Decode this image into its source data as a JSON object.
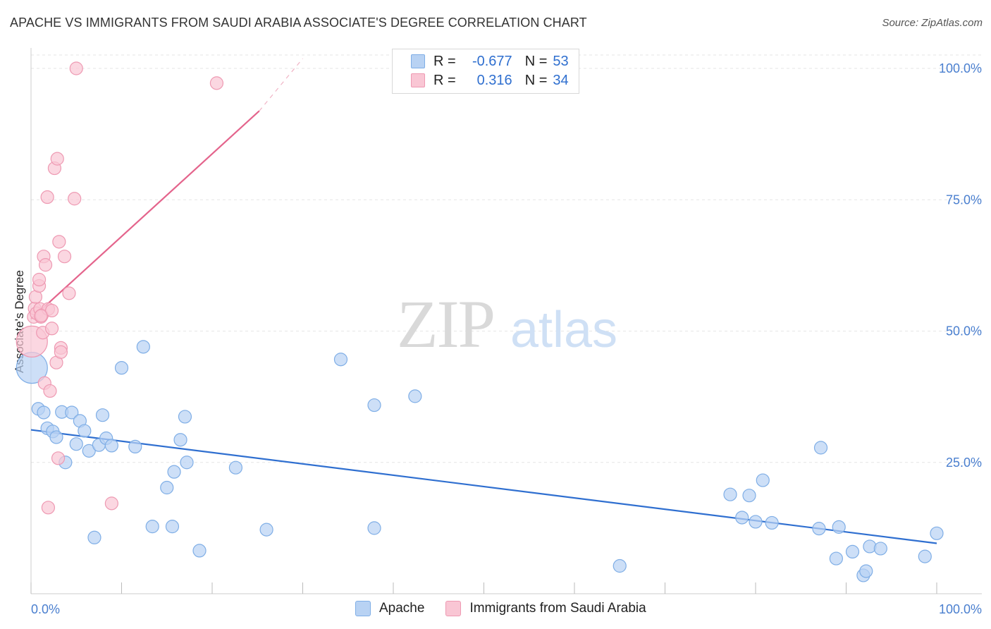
{
  "header": {
    "title": "APACHE VS IMMIGRANTS FROM SAUDI ARABIA ASSOCIATE'S DEGREE CORRELATION CHART",
    "source": "Source: ZipAtlas.com"
  },
  "watermark": {
    "zip": "ZIP",
    "atlas": "atlas"
  },
  "colors": {
    "apache_fill": "#b8d2f3",
    "apache_stroke": "#7faee6",
    "apache_line": "#2f6fd0",
    "saudi_fill": "#f9c6d4",
    "saudi_stroke": "#ee99b2",
    "saudi_line": "#e4648c",
    "tick_text": "#4a7fcf",
    "grid": "#e6e6e6"
  },
  "legend": {
    "rows": [
      {
        "r_label": "R =",
        "r_value": "-0.677",
        "n_label": "N =",
        "n_value": "53"
      },
      {
        "r_label": "R =",
        "r_value": "0.316",
        "n_label": "N =",
        "n_value": "34"
      }
    ]
  },
  "bottom_legend": {
    "apache": "Apache",
    "saudi": "Immigrants from Saudi Arabia"
  },
  "chart_data": {
    "type": "scatter",
    "title": "APACHE VS IMMIGRANTS FROM SAUDI ARABIA ASSOCIATE'S DEGREE CORRELATION CHART",
    "xlabel": "",
    "ylabel": "Associate's Degree",
    "xlim": [
      0,
      100
    ],
    "ylim": [
      0,
      100
    ],
    "y_ticks": [
      {
        "value": 25,
        "label": "25.0%"
      },
      {
        "value": 50,
        "label": "50.0%"
      },
      {
        "value": 75,
        "label": "75.0%"
      },
      {
        "value": 100,
        "label": "100.0%"
      }
    ],
    "x_tick_labels": [
      {
        "value": 0,
        "label": "0.0%"
      },
      {
        "value": 100,
        "label": "100.0%"
      }
    ],
    "grid": true,
    "legend_position": "top-center",
    "series": [
      {
        "name": "Apache",
        "color": "#b8d2f3",
        "trend": {
          "x0": 0,
          "y0": 31.2,
          "x1": 100,
          "y1": 9.6
        },
        "points": [
          {
            "x": 0.1,
            "y": 43.0,
            "big": true
          },
          {
            "x": 0.8,
            "y": 35.2
          },
          {
            "x": 1.4,
            "y": 34.5
          },
          {
            "x": 1.8,
            "y": 31.5
          },
          {
            "x": 2.4,
            "y": 30.9
          },
          {
            "x": 2.8,
            "y": 29.8
          },
          {
            "x": 3.8,
            "y": 25.0
          },
          {
            "x": 3.4,
            "y": 34.6
          },
          {
            "x": 4.5,
            "y": 34.5
          },
          {
            "x": 5.0,
            "y": 28.5
          },
          {
            "x": 5.4,
            "y": 32.9
          },
          {
            "x": 5.9,
            "y": 31.0
          },
          {
            "x": 6.4,
            "y": 27.2
          },
          {
            "x": 7.0,
            "y": 10.7
          },
          {
            "x": 7.5,
            "y": 28.3
          },
          {
            "x": 7.9,
            "y": 34.0
          },
          {
            "x": 8.3,
            "y": 29.6
          },
          {
            "x": 8.9,
            "y": 28.2
          },
          {
            "x": 10.0,
            "y": 43.0
          },
          {
            "x": 11.5,
            "y": 28.0
          },
          {
            "x": 12.4,
            "y": 47.0
          },
          {
            "x": 13.4,
            "y": 12.8
          },
          {
            "x": 15.0,
            "y": 20.2
          },
          {
            "x": 15.6,
            "y": 12.8
          },
          {
            "x": 15.8,
            "y": 23.2
          },
          {
            "x": 16.5,
            "y": 29.3
          },
          {
            "x": 17.0,
            "y": 33.7
          },
          {
            "x": 17.2,
            "y": 25.0
          },
          {
            "x": 18.6,
            "y": 8.2
          },
          {
            "x": 22.6,
            "y": 24.0
          },
          {
            "x": 26.0,
            "y": 12.2
          },
          {
            "x": 34.2,
            "y": 44.6
          },
          {
            "x": 37.9,
            "y": 35.9
          },
          {
            "x": 37.9,
            "y": 12.5
          },
          {
            "x": 42.4,
            "y": 37.6
          },
          {
            "x": 65.0,
            "y": 5.3
          },
          {
            "x": 77.2,
            "y": 18.9
          },
          {
            "x": 78.5,
            "y": 14.5
          },
          {
            "x": 79.3,
            "y": 18.7
          },
          {
            "x": 80.0,
            "y": 13.7
          },
          {
            "x": 80.8,
            "y": 21.6
          },
          {
            "x": 81.8,
            "y": 13.5
          },
          {
            "x": 87.0,
            "y": 12.4
          },
          {
            "x": 87.2,
            "y": 27.8
          },
          {
            "x": 88.9,
            "y": 6.7
          },
          {
            "x": 89.2,
            "y": 12.7
          },
          {
            "x": 90.7,
            "y": 8.0
          },
          {
            "x": 91.9,
            "y": 3.5
          },
          {
            "x": 92.2,
            "y": 4.3
          },
          {
            "x": 92.6,
            "y": 9.0
          },
          {
            "x": 93.8,
            "y": 8.6
          },
          {
            "x": 98.7,
            "y": 7.1
          },
          {
            "x": 100.0,
            "y": 11.5
          }
        ]
      },
      {
        "name": "Immigrants from Saudi Arabia",
        "color": "#f9c6d4",
        "trend": {
          "x0": 0,
          "y0": 52.3,
          "x1": 25.2,
          "y1": 91.9,
          "dash_x1": 30.0,
          "dash_y1": 100
        },
        "points": [
          {
            "x": 0.1,
            "y": 48.0,
            "big": true
          },
          {
            "x": 0.3,
            "y": 52.7
          },
          {
            "x": 0.4,
            "y": 54.3
          },
          {
            "x": 0.5,
            "y": 56.5
          },
          {
            "x": 0.6,
            "y": 53.4
          },
          {
            "x": 0.9,
            "y": 58.6
          },
          {
            "x": 0.9,
            "y": 59.8
          },
          {
            "x": 1.0,
            "y": 54.2
          },
          {
            "x": 1.1,
            "y": 52.7
          },
          {
            "x": 1.2,
            "y": 53.0
          },
          {
            "x": 1.3,
            "y": 49.7
          },
          {
            "x": 1.4,
            "y": 64.2
          },
          {
            "x": 1.5,
            "y": 40.1
          },
          {
            "x": 1.6,
            "y": 62.6
          },
          {
            "x": 1.8,
            "y": 75.5
          },
          {
            "x": 1.9,
            "y": 54.2
          },
          {
            "x": 1.9,
            "y": 16.4
          },
          {
            "x": 2.1,
            "y": 38.6
          },
          {
            "x": 2.3,
            "y": 50.5
          },
          {
            "x": 2.3,
            "y": 53.9
          },
          {
            "x": 2.6,
            "y": 81.0
          },
          {
            "x": 2.8,
            "y": 44.0
          },
          {
            "x": 2.9,
            "y": 82.8
          },
          {
            "x": 3.0,
            "y": 25.8
          },
          {
            "x": 3.1,
            "y": 67.0
          },
          {
            "x": 3.3,
            "y": 46.8
          },
          {
            "x": 3.3,
            "y": 46.0
          },
          {
            "x": 3.7,
            "y": 64.2
          },
          {
            "x": 4.2,
            "y": 57.2
          },
          {
            "x": 4.8,
            "y": 75.2
          },
          {
            "x": 5.0,
            "y": 100.0
          },
          {
            "x": 8.9,
            "y": 17.2
          },
          {
            "x": 20.5,
            "y": 97.2
          },
          {
            "x": 1.1,
            "y": 52.9
          }
        ]
      }
    ]
  }
}
